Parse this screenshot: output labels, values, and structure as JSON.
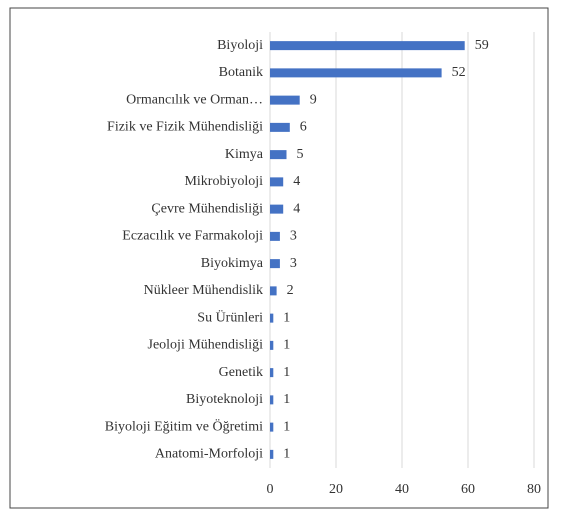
{
  "chart_data": {
    "type": "bar",
    "orientation": "horizontal",
    "categories": [
      "Biyoloji",
      "Botanik",
      "Ormancılık ve Orman…",
      "Fizik ve Fizik Mühendisliği",
      "Kimya",
      "Mikrobiyoloji",
      "Çevre Mühendisliği",
      "Eczacılık ve Farmakoloji",
      "Biyokimya",
      "Nükleer Mühendislik",
      "Su Ürünleri",
      "Jeoloji Mühendisliği",
      "Genetik",
      "Biyoteknoloji",
      "Biyoloji Eğitim ve Öğretimi",
      "Anatomi-Morfoloji"
    ],
    "values": [
      59,
      52,
      9,
      6,
      5,
      4,
      4,
      3,
      3,
      2,
      1,
      1,
      1,
      1,
      1,
      1
    ],
    "color": "#4472c4",
    "xlim": [
      0,
      80
    ],
    "xticks": [
      0,
      20,
      40,
      60,
      80
    ],
    "grid": true
  }
}
